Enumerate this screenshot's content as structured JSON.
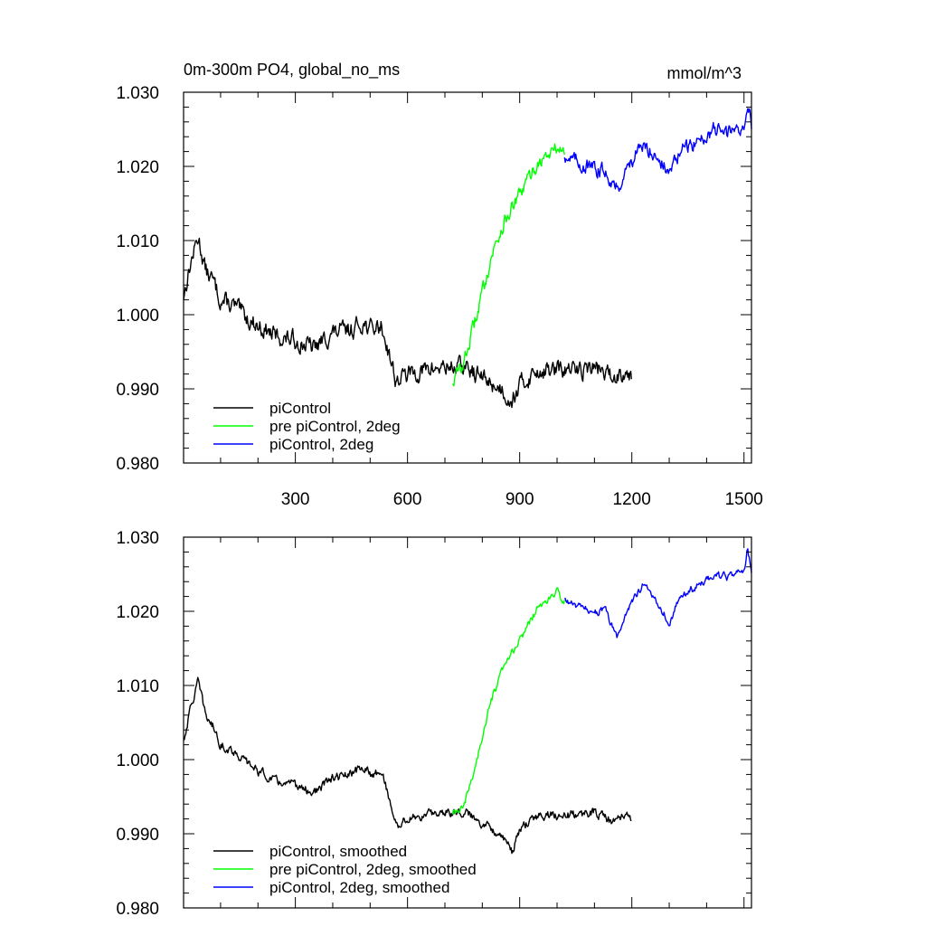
{
  "chart_data": [
    {
      "type": "line",
      "title": "0m-300m PO4, global_no_ms",
      "units": "mmol/m^3",
      "xlim": [
        1,
        1520
      ],
      "ylim": [
        0.98,
        1.03
      ],
      "xticks": [
        300,
        600,
        900,
        1200,
        1500
      ],
      "xtick_labels": [
        "300",
        "600",
        "900",
        "1200",
        "1500"
      ],
      "yticks": [
        0.98,
        0.99,
        1.0,
        1.01,
        1.02,
        1.03
      ],
      "ytick_labels": [
        "0.980",
        "0.990",
        "1.000",
        "1.010",
        "1.020",
        "1.030"
      ],
      "legend_position": "bottom-left",
      "series": [
        {
          "name": "piControl",
          "color": "#000000",
          "noise": 0.0022,
          "points": [
            [
              1,
              1.0025
            ],
            [
              20,
              1.007
            ],
            [
              40,
              1.0105
            ],
            [
              60,
              1.006
            ],
            [
              80,
              1.0045
            ],
            [
              100,
              1.002
            ],
            [
              140,
              1.001
            ],
            [
              160,
              1.0
            ],
            [
              200,
              0.9985
            ],
            [
              250,
              0.997
            ],
            [
              300,
              0.9965
            ],
            [
              350,
              0.9955
            ],
            [
              400,
              0.9975
            ],
            [
              450,
              0.998
            ],
            [
              480,
              0.999
            ],
            [
              500,
              0.998
            ],
            [
              530,
              0.9985
            ],
            [
              550,
              0.995
            ],
            [
              570,
              0.991
            ],
            [
              600,
              0.992
            ],
            [
              650,
              0.9925
            ],
            [
              700,
              0.993
            ],
            [
              750,
              0.993
            ],
            [
              800,
              0.9915
            ],
            [
              850,
              0.99
            ],
            [
              880,
              0.9885
            ],
            [
              900,
              0.9905
            ],
            [
              950,
              0.9925
            ],
            [
              1000,
              0.9925
            ],
            [
              1050,
              0.9925
            ],
            [
              1100,
              0.993
            ],
            [
              1150,
              0.9915
            ],
            [
              1180,
              0.9925
            ],
            [
              1200,
              0.992
            ]
          ]
        },
        {
          "name": "pre piControl, 2deg",
          "color": "#00ff00",
          "noise": 0.0018,
          "points": [
            [
              720,
              0.991
            ],
            [
              750,
              0.9935
            ],
            [
              775,
              0.998
            ],
            [
              800,
              1.003
            ],
            [
              825,
              1.008
            ],
            [
              850,
              1.0115
            ],
            [
              875,
              1.014
            ],
            [
              900,
              1.016
            ],
            [
              925,
              1.0185
            ],
            [
              950,
              1.0205
            ],
            [
              975,
              1.0215
            ],
            [
              1000,
              1.0225
            ],
            [
              1020,
              1.022
            ]
          ]
        },
        {
          "name": "piControl, 2deg",
          "color": "#0000ff",
          "noise": 0.0018,
          "points": [
            [
              1020,
              1.0215
            ],
            [
              1060,
              1.0205
            ],
            [
              1100,
              1.0195
            ],
            [
              1130,
              1.0195
            ],
            [
              1160,
              1.017
            ],
            [
              1200,
              1.021
            ],
            [
              1230,
              1.0225
            ],
            [
              1260,
              1.022
            ],
            [
              1300,
              1.019
            ],
            [
              1330,
              1.022
            ],
            [
              1380,
              1.0235
            ],
            [
              1420,
              1.025
            ],
            [
              1460,
              1.0245
            ],
            [
              1500,
              1.0255
            ],
            [
              1510,
              1.0285
            ],
            [
              1520,
              1.0255
            ]
          ]
        }
      ]
    },
    {
      "type": "line",
      "xlim": [
        1,
        1520
      ],
      "ylim": [
        0.98,
        1.03
      ],
      "yticks": [
        0.98,
        0.99,
        1.0,
        1.01,
        1.02,
        1.03
      ],
      "ytick_labels": [
        "0.980",
        "0.990",
        "1.000",
        "1.010",
        "1.020",
        "1.030"
      ],
      "legend_position": "bottom-left",
      "series": [
        {
          "name": "piControl, smoothed",
          "color": "#000000",
          "noise": 0.0011,
          "points": [
            [
              1,
              1.0025
            ],
            [
              20,
              1.007
            ],
            [
              40,
              1.0105
            ],
            [
              60,
              1.006
            ],
            [
              80,
              1.0045
            ],
            [
              100,
              1.002
            ],
            [
              140,
              1.001
            ],
            [
              160,
              1.0
            ],
            [
              200,
              0.9985
            ],
            [
              250,
              0.997
            ],
            [
              300,
              0.9965
            ],
            [
              350,
              0.9955
            ],
            [
              400,
              0.9975
            ],
            [
              450,
              0.998
            ],
            [
              480,
              0.999
            ],
            [
              500,
              0.998
            ],
            [
              530,
              0.9985
            ],
            [
              550,
              0.995
            ],
            [
              570,
              0.991
            ],
            [
              600,
              0.992
            ],
            [
              650,
              0.9925
            ],
            [
              700,
              0.993
            ],
            [
              750,
              0.993
            ],
            [
              800,
              0.9915
            ],
            [
              850,
              0.99
            ],
            [
              880,
              0.9875
            ],
            [
              900,
              0.9905
            ],
            [
              950,
              0.9925
            ],
            [
              1000,
              0.9925
            ],
            [
              1050,
              0.9925
            ],
            [
              1100,
              0.993
            ],
            [
              1150,
              0.9915
            ],
            [
              1180,
              0.9925
            ],
            [
              1200,
              0.992
            ]
          ]
        },
        {
          "name": "pre piControl, 2deg, smoothed",
          "color": "#00ff00",
          "noise": 0.0009,
          "points": [
            [
              720,
              0.9925
            ],
            [
              750,
              0.9935
            ],
            [
              775,
              0.998
            ],
            [
              800,
              1.003
            ],
            [
              825,
              1.008
            ],
            [
              850,
              1.0115
            ],
            [
              875,
              1.014
            ],
            [
              900,
              1.016
            ],
            [
              925,
              1.0185
            ],
            [
              950,
              1.0205
            ],
            [
              975,
              1.0215
            ],
            [
              1000,
              1.0225
            ],
            [
              1020,
              1.0215
            ]
          ]
        },
        {
          "name": "piControl, 2deg, smoothed",
          "color": "#0000ff",
          "noise": 0.0009,
          "points": [
            [
              1020,
              1.0215
            ],
            [
              1060,
              1.0205
            ],
            [
              1100,
              1.02
            ],
            [
              1130,
              1.02
            ],
            [
              1160,
              1.0165
            ],
            [
              1200,
              1.0215
            ],
            [
              1230,
              1.0235
            ],
            [
              1260,
              1.022
            ],
            [
              1300,
              1.0185
            ],
            [
              1330,
              1.022
            ],
            [
              1380,
              1.0235
            ],
            [
              1420,
              1.025
            ],
            [
              1460,
              1.0245
            ],
            [
              1500,
              1.0255
            ],
            [
              1510,
              1.0285
            ],
            [
              1520,
              1.0255
            ]
          ]
        }
      ]
    }
  ]
}
